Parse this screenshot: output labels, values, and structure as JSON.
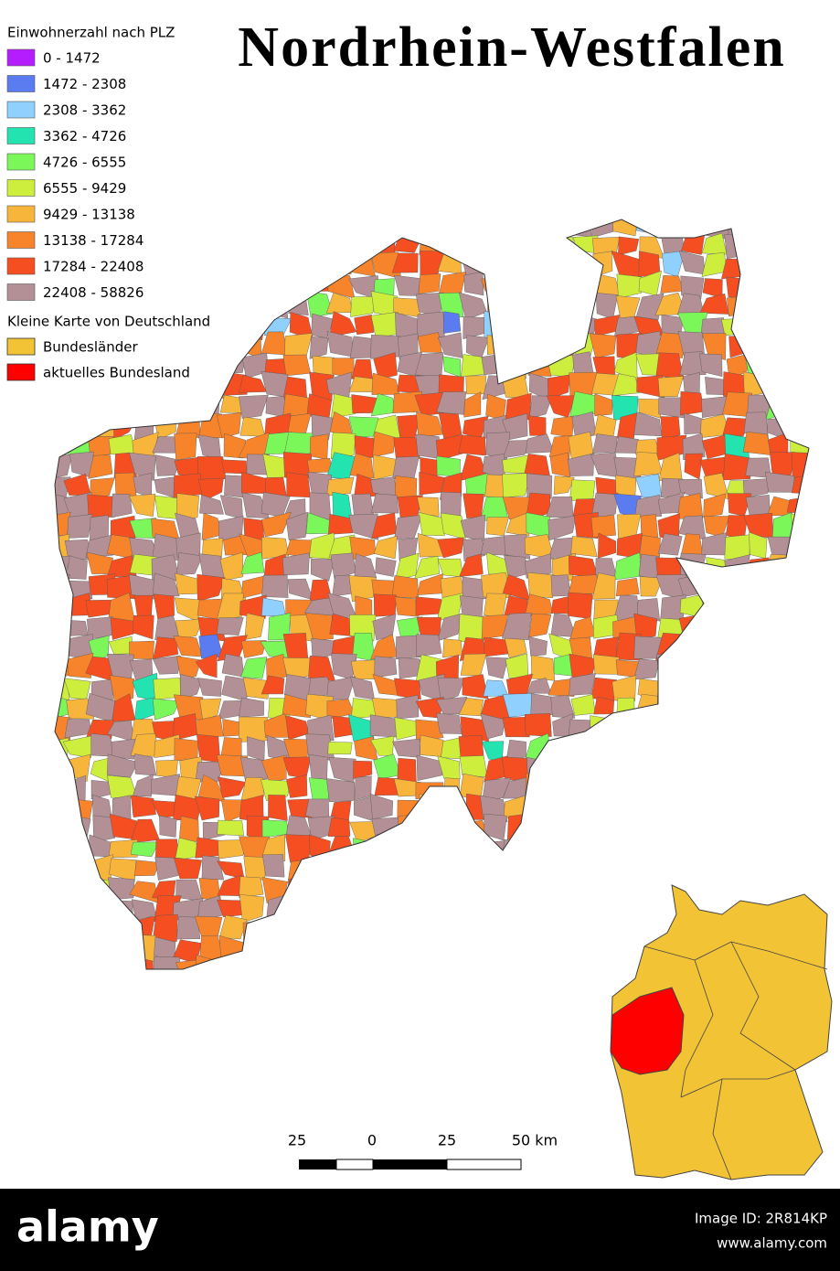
{
  "title": "Nordrhein-Westfalen",
  "legend": {
    "title": "Einwohnerzahl nach PLZ",
    "items": [
      {
        "label": "0 - 1472",
        "color": "#b41eff"
      },
      {
        "label": "1472 - 2308",
        "color": "#5b7cf0"
      },
      {
        "label": "2308 - 3362",
        "color": "#8fd0ff"
      },
      {
        "label": "3362 - 4726",
        "color": "#23e3b0"
      },
      {
        "label": "4726 - 6555",
        "color": "#7cf75a"
      },
      {
        "label": "6555 - 9429",
        "color": "#cdee3c"
      },
      {
        "label": "9429 - 13138",
        "color": "#f8b53b"
      },
      {
        "label": "13138 - 17284",
        "color": "#f7842b"
      },
      {
        "label": "17284 - 22408",
        "color": "#f54f21"
      },
      {
        "label": "22408 - 58826",
        "color": "#b39095"
      }
    ]
  },
  "inset_legend": {
    "title": "Kleine Karte von Deutschland",
    "items": [
      {
        "label": "Bundesländer",
        "color": "#f2c335"
      },
      {
        "label": "aktuelles Bundesland",
        "color": "#ff0000"
      }
    ]
  },
  "scale_bar": {
    "labels": [
      "25",
      "0",
      "25",
      "50 km"
    ]
  },
  "watermark": {
    "brand": "alamy",
    "image_id": "Image ID: 2R814KP",
    "url": "www.alamy.com"
  }
}
